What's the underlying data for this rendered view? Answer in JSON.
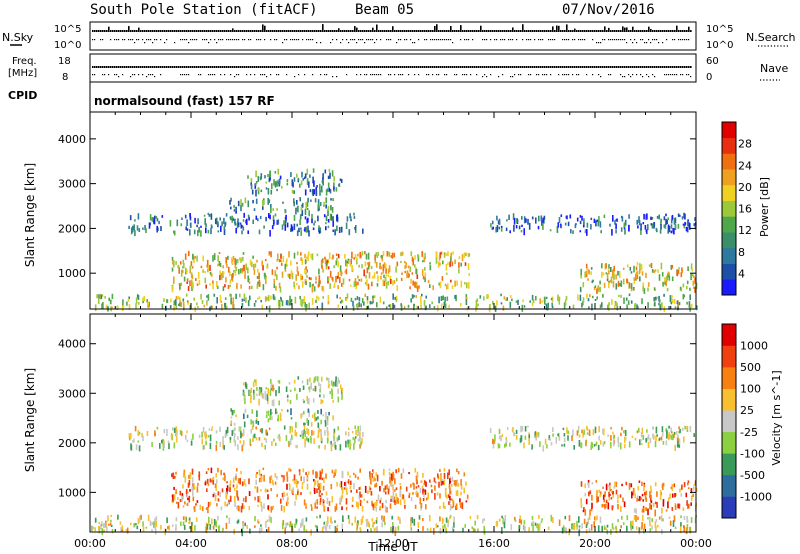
{
  "chart_data": [
    {
      "type": "line",
      "header": {
        "station": "South Pole Station (fitACF)",
        "beam": "Beam 05",
        "date": "07/Nov/2016"
      },
      "panel": "noise-search",
      "left_label": "N.Sky",
      "left_ticks": [
        "10^5",
        "10^0"
      ],
      "right_label": "N.Search",
      "right_ticks": [
        "10^5",
        "10^0"
      ]
    },
    {
      "type": "line",
      "panel": "freq-nave",
      "left_label_lines": [
        "Freq.",
        "[MHz]"
      ],
      "left_ticks": [
        "18",
        "8"
      ],
      "right_label": "Nave",
      "right_ticks": [
        "60",
        "0"
      ]
    },
    {
      "type": "table",
      "panel": "cpid",
      "label": "CPID",
      "value": "normalsound (fast) 157 RF"
    },
    {
      "type": "heatmap",
      "panel": "power",
      "ylabel": "Slant Range [km]",
      "ylim": [
        200,
        4600
      ],
      "yticks": [
        "1000",
        "2000",
        "3000",
        "4000"
      ],
      "xlim": [
        0,
        24
      ],
      "xlabel": "Time UT",
      "colorbar": {
        "label": "Power [dB]",
        "range": [
          0,
          32
        ],
        "ticks": [
          "4",
          "8",
          "12",
          "16",
          "20",
          "24",
          "28"
        ],
        "colors": [
          "#1a1aff",
          "#1e4fa8",
          "#2e79a0",
          "#3a8f6a",
          "#4ea84a",
          "#9cc93a",
          "#f0d020",
          "#f0a020",
          "#f07010",
          "#e83010",
          "#e00000"
        ]
      },
      "regions": [
        {
          "name": "echoes-2000km-early",
          "t": [
            1.5,
            10.8
          ],
          "r": [
            1950,
            2350
          ],
          "level": 0.2
        },
        {
          "name": "echoes-2500km",
          "t": [
            5.5,
            9.6
          ],
          "r": [
            2400,
            2700
          ],
          "level": 0.3
        },
        {
          "name": "echoes-3000km",
          "t": [
            6.0,
            10.0
          ],
          "r": [
            2850,
            3350
          ],
          "level": 0.28
        },
        {
          "name": "echoes-2000km-late",
          "t": [
            15.8,
            24.0
          ],
          "r": [
            1950,
            2350
          ],
          "level": 0.2
        },
        {
          "name": "echoes-1000km-main",
          "t": [
            3.2,
            15.0
          ],
          "r": [
            700,
            1500
          ],
          "level": 0.62
        },
        {
          "name": "echoes-1000km-late",
          "t": [
            19.4,
            24.0
          ],
          "r": [
            650,
            1250
          ],
          "level": 0.55
        },
        {
          "name": "echoes-near-range",
          "t": [
            0.0,
            24.0
          ],
          "r": [
            250,
            550
          ],
          "level": 0.45
        }
      ]
    },
    {
      "type": "heatmap",
      "panel": "velocity",
      "ylabel": "Slant Range [km]",
      "ylim": [
        200,
        4600
      ],
      "yticks": [
        "1000",
        "2000",
        "3000",
        "4000"
      ],
      "xlim": [
        0,
        24
      ],
      "xlabel": "Time UT",
      "xticks": [
        "00:00",
        "04:00",
        "08:00",
        "12:00",
        "16:00",
        "20:00",
        "00:00"
      ],
      "colorbar": {
        "label": "Velocity [m s^-1]",
        "ticks": [
          "1000",
          "500",
          "100",
          "25",
          "-25",
          "-100",
          "-500",
          "-1000"
        ],
        "colors": [
          "#2a3cb8",
          "#2e6e9e",
          "#3a9a5a",
          "#8ad040",
          "#c8c8c8",
          "#f8c030",
          "#f88010",
          "#f04010",
          "#e00000"
        ]
      },
      "regions": [
        {
          "name": "echoes-2000km-early",
          "t": [
            1.5,
            10.8
          ],
          "r": [
            1950,
            2350
          ],
          "level": 0.48
        },
        {
          "name": "echoes-2500km",
          "t": [
            5.5,
            9.6
          ],
          "r": [
            2400,
            2700
          ],
          "level": 0.42
        },
        {
          "name": "echoes-3000km",
          "t": [
            6.0,
            10.0
          ],
          "r": [
            2850,
            3350
          ],
          "level": 0.45
        },
        {
          "name": "echoes-2000km-late",
          "t": [
            15.8,
            24.0
          ],
          "r": [
            1950,
            2350
          ],
          "level": 0.48
        },
        {
          "name": "echoes-1000km-main",
          "t": [
            3.2,
            15.0
          ],
          "r": [
            700,
            1500
          ],
          "level": 0.72
        },
        {
          "name": "echoes-1000km-late",
          "t": [
            19.4,
            24.0
          ],
          "r": [
            650,
            1250
          ],
          "level": 0.75
        },
        {
          "name": "echoes-near-range",
          "t": [
            0.0,
            24.0
          ],
          "r": [
            250,
            550
          ],
          "level": 0.5
        }
      ]
    }
  ]
}
